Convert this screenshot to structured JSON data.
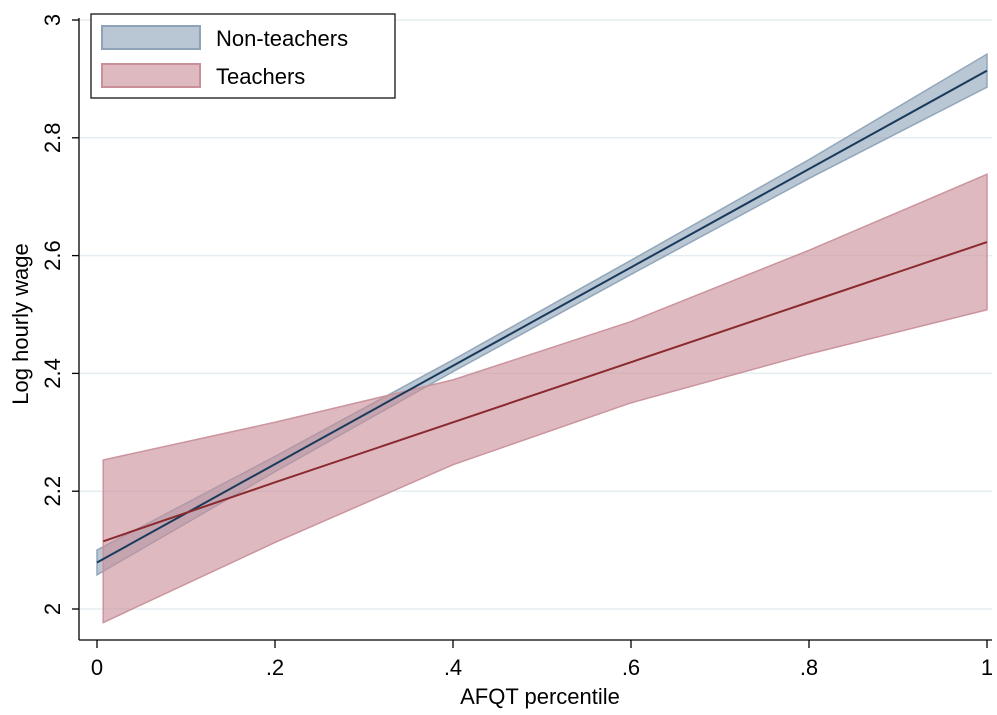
{
  "chart_data": {
    "type": "line",
    "title": "",
    "xlabel": "AFQT percentile",
    "ylabel": "Log hourly wage",
    "xlim": [
      0,
      1
    ],
    "ylim": [
      2,
      3
    ],
    "x_ticks": [
      {
        "value": 0,
        "label": "0"
      },
      {
        "value": 0.2,
        "label": ".2"
      },
      {
        "value": 0.4,
        "label": ".4"
      },
      {
        "value": 0.6,
        "label": ".6"
      },
      {
        "value": 0.8,
        "label": ".8"
      },
      {
        "value": 1,
        "label": "1"
      }
    ],
    "y_ticks": [
      {
        "value": 2,
        "label": "2"
      },
      {
        "value": 2.2,
        "label": "2.2"
      },
      {
        "value": 2.4,
        "label": "2.4"
      },
      {
        "value": 2.6,
        "label": "2.6"
      },
      {
        "value": 2.8,
        "label": "2.8"
      },
      {
        "value": 3,
        "label": "3"
      }
    ],
    "grid": true,
    "legend_position": "top-left",
    "series": [
      {
        "name": "Non-teachers",
        "line_color": "#1a3a5c",
        "band_color": "#8ea3b8",
        "x": [
          0,
          0.2,
          0.4,
          0.6,
          0.8,
          1
        ],
        "y": [
          2.079,
          2.246,
          2.413,
          2.58,
          2.747,
          2.914
        ],
        "lower": [
          2.058,
          2.233,
          2.403,
          2.568,
          2.731,
          2.886
        ],
        "upper": [
          2.1,
          2.259,
          2.423,
          2.592,
          2.763,
          2.942
        ]
      },
      {
        "name": "Teachers",
        "line_color": "#8b2a2e",
        "band_color": "#c9909a",
        "x": [
          0.007,
          0.2,
          0.4,
          0.6,
          0.8,
          1
        ],
        "y": [
          2.115,
          2.215,
          2.317,
          2.419,
          2.521,
          2.623
        ],
        "lower": [
          1.977,
          2.113,
          2.245,
          2.35,
          2.433,
          2.508
        ],
        "upper": [
          2.253,
          2.317,
          2.389,
          2.488,
          2.609,
          2.738
        ]
      }
    ]
  }
}
